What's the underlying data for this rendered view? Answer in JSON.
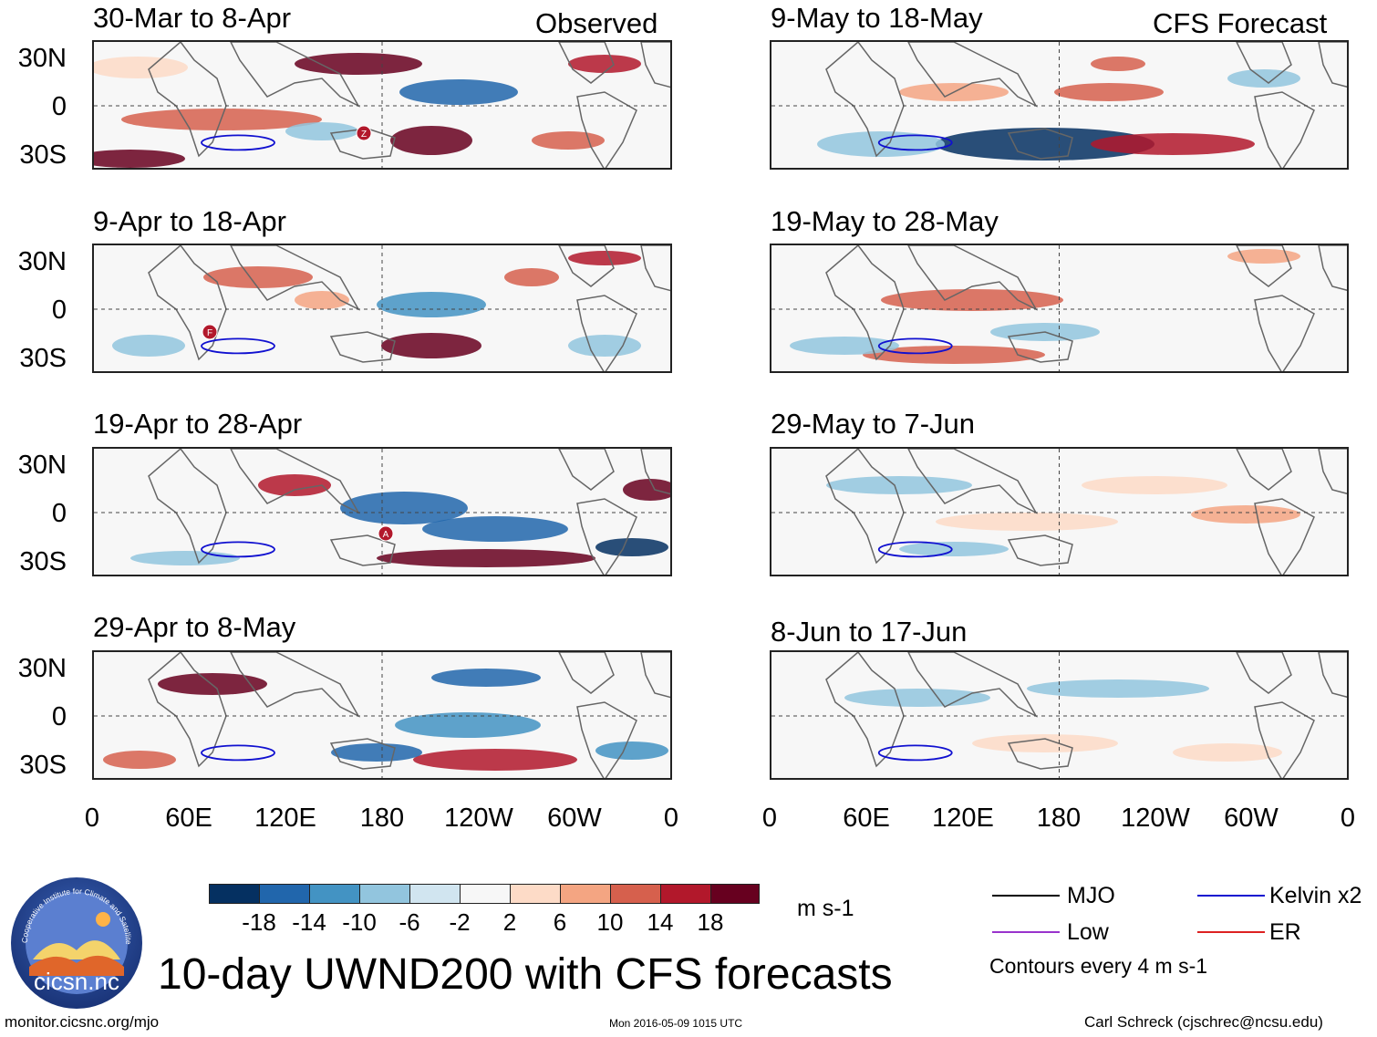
{
  "figure_title": "10-day UWND200 with CFS forecasts",
  "column_headers": {
    "left": "Observed",
    "right": "CFS Forecast"
  },
  "panels_left": [
    {
      "title": "30-Mar to 8-Apr",
      "storm": "Z"
    },
    {
      "title": "9-Apr to 18-Apr",
      "storm": "F"
    },
    {
      "title": "19-Apr to 28-Apr",
      "storm": "A"
    },
    {
      "title": "29-Apr to 8-May",
      "storm": ""
    }
  ],
  "panels_right": [
    {
      "title": "9-May to 18-May"
    },
    {
      "title": "19-May to 28-May"
    },
    {
      "title": "29-May to 7-Jun"
    },
    {
      "title": "8-Jun to 17-Jun"
    }
  ],
  "lat_labels": [
    "30N",
    "0",
    "30S"
  ],
  "lon_labels": [
    "0",
    "60E",
    "120E",
    "180",
    "120W",
    "60W",
    "0"
  ],
  "colorbar": {
    "ticks": [
      "-18",
      "-14",
      "-10",
      "-6",
      "-2",
      "2",
      "6",
      "10",
      "14",
      "18"
    ],
    "colors": [
      "#053061",
      "#2166ac",
      "#4393c3",
      "#92c5de",
      "#d1e5f0",
      "#f7f7f7",
      "#fddbc7",
      "#f4a582",
      "#d6604d",
      "#b2182b",
      "#67001f"
    ],
    "units": "m s-1"
  },
  "legend": {
    "mjo": "MJO",
    "kelvin": "Kelvin x2",
    "low": "Low",
    "er": "ER",
    "contours": "Contours every 4 m s-1",
    "colors": {
      "mjo": "#000000",
      "kelvin": "#1010d0",
      "low": "#9933cc",
      "er": "#dd2222"
    }
  },
  "logo": {
    "text": "cicsn.nc",
    "ring_text": "Cooperative Institute for Climate and Satellites"
  },
  "footer": {
    "url": "monitor.cicsnc.org/mjo",
    "timestamp": "Mon 2016-05-09 1015 UTC",
    "author": "Carl Schreck (cjschrec@ncsu.edu)"
  }
}
